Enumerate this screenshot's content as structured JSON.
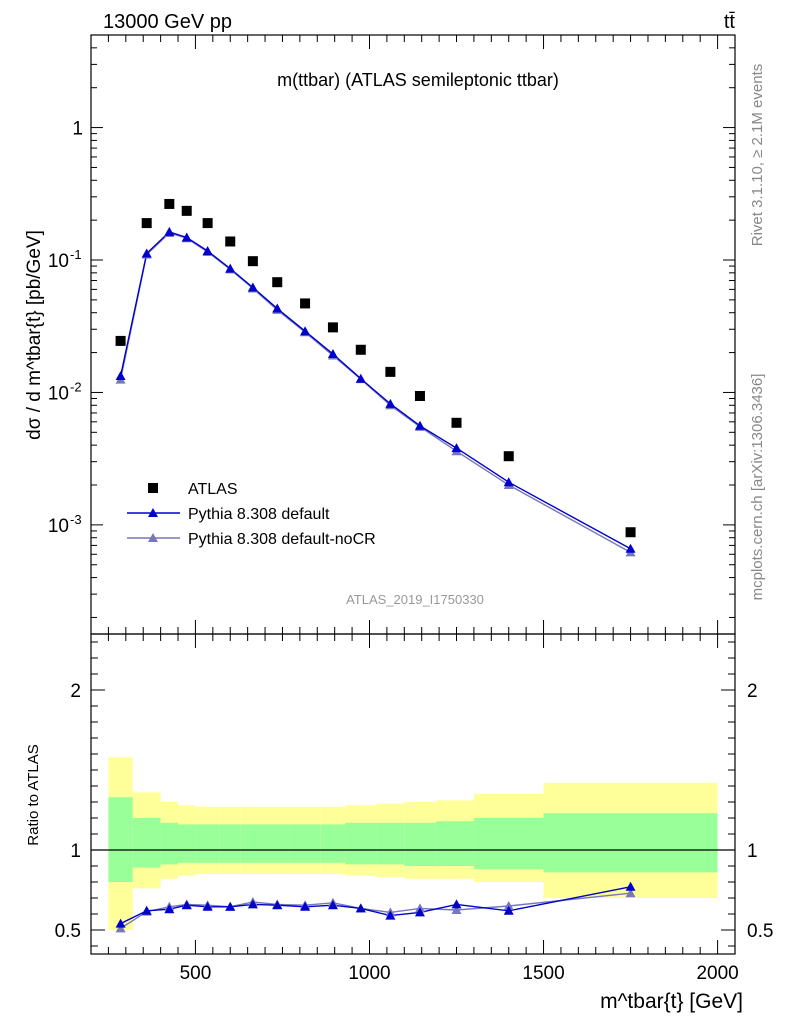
{
  "header": {
    "energy_label": "13000 GeV pp",
    "process_label": "tt̄"
  },
  "side_labels": {
    "rivet": "Rivet 3.1.10, ≥ 2.1M events",
    "mcplots": "mcplots.cern.ch [arXiv:1306.3436]"
  },
  "analysis_id": "ATLAS_2019_I1750330",
  "colors": {
    "data": "#000000",
    "pythia_default": "#0000cc",
    "pythia_nocr": "#7777bb",
    "band_inner": "#99ff99",
    "band_outer": "#ffff99"
  },
  "chart_data": [
    {
      "type": "scatter",
      "panel": "main",
      "title": "m(ttbar) (ATLAS semileptonic ttbar)",
      "ylabel": "dσ / d m^tbar{t} [pb/GeV]",
      "yscale": "log",
      "ylim": [
        0.00015,
        5
      ],
      "xlim": [
        200,
        2050
      ],
      "y_tick_labels": [
        "1",
        "10^-1",
        "10^-2",
        "10^-3"
      ],
      "legend_position": "lower-left",
      "x": [
        285,
        360,
        425,
        475,
        535,
        600,
        665,
        735,
        815,
        895,
        975,
        1060,
        1145,
        1250,
        1400,
        1750
      ],
      "series": [
        {
          "name": "ATLAS",
          "marker": "square",
          "values": [
            0.0245,
            0.19,
            0.265,
            0.235,
            0.19,
            0.138,
            0.098,
            0.068,
            0.047,
            0.031,
            0.021,
            0.0143,
            0.0094,
            0.0059,
            0.0033,
            0.00088
          ]
        },
        {
          "name": "Pythia 8.308 default",
          "marker": "triangle",
          "values": [
            0.0133,
            0.112,
            0.163,
            0.148,
            0.117,
            0.086,
            0.062,
            0.043,
            0.029,
            0.0195,
            0.0127,
            0.0082,
            0.0056,
            0.0038,
            0.0021,
            0.00066
          ]
        },
        {
          "name": "Pythia 8.308 default-noCR",
          "marker": "triangle",
          "values": [
            0.0125,
            0.11,
            0.16,
            0.146,
            0.115,
            0.085,
            0.061,
            0.042,
            0.0285,
            0.019,
            0.0126,
            0.008,
            0.0055,
            0.0036,
            0.002,
            0.00062
          ]
        }
      ]
    },
    {
      "type": "line",
      "panel": "ratio",
      "ylabel": "Ratio to ATLAS",
      "xlabel": "m^tbar{t} [GeV]",
      "ylim": [
        0.35,
        2.35
      ],
      "xlim": [
        200,
        2050
      ],
      "x_ticks": [
        500,
        1000,
        1500,
        2000
      ],
      "y_ticks": [
        0.5,
        1,
        2
      ],
      "x": [
        285,
        360,
        425,
        475,
        535,
        600,
        665,
        735,
        815,
        895,
        975,
        1060,
        1145,
        1250,
        1400,
        1750
      ],
      "bins": [
        250,
        320,
        400,
        450,
        500,
        570,
        630,
        700,
        770,
        860,
        930,
        1020,
        1100,
        1190,
        1300,
        1500,
        2000
      ],
      "band_inner_lo": [
        0.8,
        0.89,
        0.91,
        0.92,
        0.92,
        0.92,
        0.92,
        0.92,
        0.92,
        0.92,
        0.91,
        0.91,
        0.9,
        0.9,
        0.88,
        0.86
      ],
      "band_inner_hi": [
        1.33,
        1.2,
        1.17,
        1.16,
        1.16,
        1.16,
        1.16,
        1.16,
        1.16,
        1.16,
        1.17,
        1.17,
        1.17,
        1.18,
        1.2,
        1.23
      ],
      "band_outer_lo": [
        0.5,
        0.76,
        0.82,
        0.84,
        0.85,
        0.85,
        0.85,
        0.85,
        0.85,
        0.85,
        0.84,
        0.83,
        0.82,
        0.82,
        0.8,
        0.7
      ],
      "band_outer_hi": [
        1.58,
        1.36,
        1.3,
        1.28,
        1.27,
        1.27,
        1.27,
        1.27,
        1.27,
        1.27,
        1.28,
        1.29,
        1.3,
        1.31,
        1.35,
        1.42
      ],
      "series": [
        {
          "name": "Pythia 8.308 default",
          "values": [
            0.54,
            0.62,
            0.63,
            0.655,
            0.645,
            0.645,
            0.66,
            0.655,
            0.645,
            0.655,
            0.635,
            0.59,
            0.61,
            0.66,
            0.62,
            0.77
          ]
        },
        {
          "name": "Pythia 8.308 default-noCR",
          "values": [
            0.51,
            0.615,
            0.645,
            0.66,
            0.655,
            0.645,
            0.675,
            0.66,
            0.655,
            0.67,
            0.635,
            0.61,
            0.635,
            0.625,
            0.65,
            0.73
          ]
        }
      ]
    }
  ]
}
